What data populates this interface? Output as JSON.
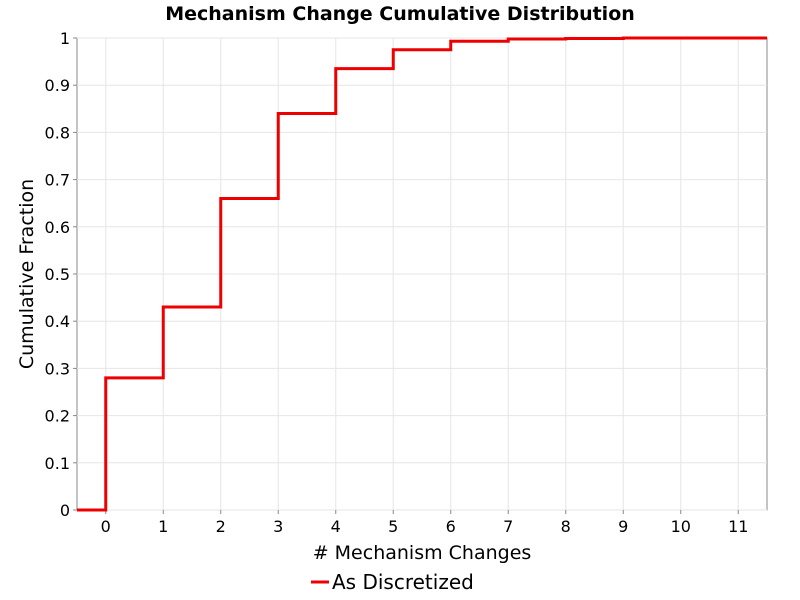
{
  "chart_data": {
    "type": "line",
    "step": true,
    "title": "Mechanism Change Cumulative Distribution",
    "xlabel": "# Mechanism Changes",
    "ylabel": "Cumulative Fraction",
    "xlim": [
      -0.5,
      11.5
    ],
    "ylim": [
      0,
      1
    ],
    "xticks": [
      0,
      1,
      2,
      3,
      4,
      5,
      6,
      7,
      8,
      9,
      10,
      11
    ],
    "yticks": [
      0,
      0.1,
      0.2,
      0.3,
      0.4,
      0.5,
      0.6,
      0.7,
      0.8,
      0.9,
      1
    ],
    "ytick_labels": [
      "0",
      "0.1",
      "0.2",
      "0.3",
      "0.4",
      "0.5",
      "0.6",
      "0.7",
      "0.8",
      "0.9",
      "1"
    ],
    "grid": true,
    "legend_position": "bottom-center",
    "series": [
      {
        "name": "As Discretized",
        "color": "#ee0000",
        "x": [
          0,
          1,
          2,
          3,
          4,
          5,
          6,
          7,
          8,
          9,
          10,
          11
        ],
        "y": [
          0.28,
          0.43,
          0.66,
          0.84,
          0.935,
          0.975,
          0.993,
          0.998,
          0.999,
          1.0,
          1.0,
          1.0
        ]
      }
    ]
  }
}
